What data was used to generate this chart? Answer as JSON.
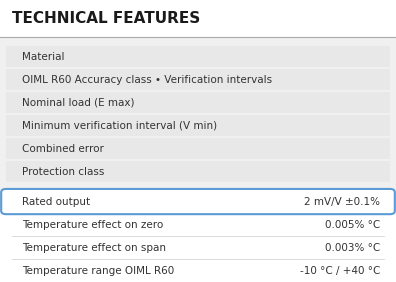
{
  "title": "TECHNICAL FEATURES",
  "title_color": "#1a1a1a",
  "title_fontsize": 11,
  "figure_bg": "#f0f0f0",
  "rows_grey": [
    {
      "label": "Material",
      "value": ""
    },
    {
      "label": "OIML R60 Accuracy class • Verification intervals",
      "value": ""
    },
    {
      "label": "Nominal load (E max)",
      "value": ""
    },
    {
      "label": "Minimum verification interval (V min)",
      "value": ""
    },
    {
      "label": "Combined error",
      "value": ""
    },
    {
      "label": "Protection class",
      "value": ""
    }
  ],
  "row_highlighted": {
    "label": "Rated output",
    "value": "2 mV/V ±0.1%"
  },
  "rows_white": [
    {
      "label": "Temperature effect on zero",
      "value": "0.005% °C"
    },
    {
      "label": "Temperature effect on span",
      "value": "0.003% °C"
    },
    {
      "label": "Temperature range OIML R60",
      "value": "-10 °C / +40 °C"
    }
  ],
  "grey_row_color": "#e8e8e8",
  "white_row_color": "#ffffff",
  "highlight_row_color": "#ffffff",
  "highlight_border_color": "#5b9bd5",
  "text_color": "#333333",
  "font_size": 7.5,
  "title_line_color": "#aaaaaa"
}
